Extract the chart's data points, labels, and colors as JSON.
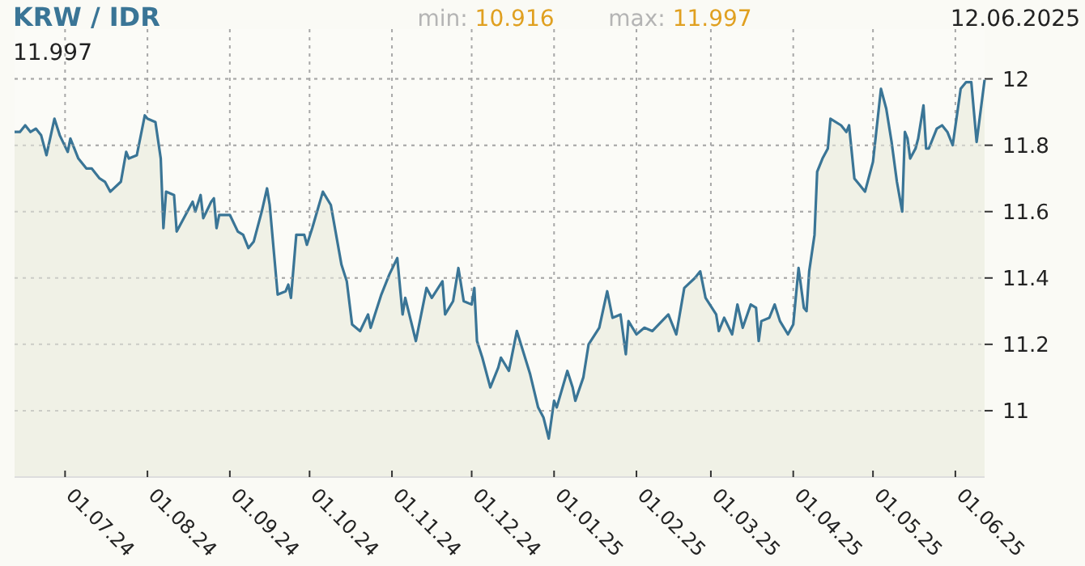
{
  "chart_data": {
    "type": "area",
    "title": "KRW / IDR",
    "annotations": [
      "min: 10.916",
      "max: 11.997",
      "12.06.2025",
      "11.997"
    ],
    "x": [
      "2024-06-12",
      "2024-06-14",
      "2024-06-16",
      "2024-06-18",
      "2024-06-20",
      "2024-06-22",
      "2024-06-24",
      "2024-06-27",
      "2024-06-29",
      "2024-07-02",
      "2024-07-03",
      "2024-07-06",
      "2024-07-09",
      "2024-07-11",
      "2024-07-14",
      "2024-07-16",
      "2024-07-18",
      "2024-07-22",
      "2024-07-24",
      "2024-07-25",
      "2024-07-28",
      "2024-07-31",
      "2024-08-01",
      "2024-08-04",
      "2024-08-06",
      "2024-08-07",
      "2024-08-08",
      "2024-08-11",
      "2024-08-12",
      "2024-08-14",
      "2024-08-18",
      "2024-08-19",
      "2024-08-21",
      "2024-08-22",
      "2024-08-25",
      "2024-08-26",
      "2024-08-27",
      "2024-08-28",
      "2024-09-01",
      "2024-09-04",
      "2024-09-06",
      "2024-09-08",
      "2024-09-10",
      "2024-09-13",
      "2024-09-15",
      "2024-09-16",
      "2024-09-19",
      "2024-09-22",
      "2024-09-23",
      "2024-09-24",
      "2024-09-26",
      "2024-09-29",
      "2024-09-30",
      "2024-10-02",
      "2024-10-06",
      "2024-10-09",
      "2024-10-13",
      "2024-10-15",
      "2024-10-17",
      "2024-10-20",
      "2024-10-23",
      "2024-10-24",
      "2024-10-28",
      "2024-10-31",
      "2024-11-03",
      "2024-11-05",
      "2024-11-06",
      "2024-11-10",
      "2024-11-14",
      "2024-11-16",
      "2024-11-20",
      "2024-11-21",
      "2024-11-24",
      "2024-11-26",
      "2024-11-28",
      "2024-12-01",
      "2024-12-02",
      "2024-12-03",
      "2024-12-05",
      "2024-12-08",
      "2024-12-11",
      "2024-12-12",
      "2024-12-15",
      "2024-12-18",
      "2024-12-23",
      "2024-12-26",
      "2024-12-28",
      "2024-12-30",
      "2025-01-01",
      "2025-01-02",
      "2025-01-06",
      "2025-01-08",
      "2025-01-09",
      "2025-01-12",
      "2025-01-14",
      "2025-01-18",
      "2025-01-21",
      "2025-01-23",
      "2025-01-26",
      "2025-01-28",
      "2025-01-29",
      "2025-02-01",
      "2025-02-04",
      "2025-02-07",
      "2025-02-13",
      "2025-02-16",
      "2025-02-19",
      "2025-02-23",
      "2025-02-25",
      "2025-02-27",
      "2025-03-03",
      "2025-03-04",
      "2025-03-06",
      "2025-03-09",
      "2025-03-11",
      "2025-03-13",
      "2025-03-16",
      "2025-03-18",
      "2025-03-19",
      "2025-03-20",
      "2025-03-23",
      "2025-03-25",
      "2025-03-27",
      "2025-03-30",
      "2025-04-01",
      "2025-04-03",
      "2025-04-05",
      "2025-04-06",
      "2025-04-07",
      "2025-04-09",
      "2025-04-10",
      "2025-04-12",
      "2025-04-14",
      "2025-04-15",
      "2025-04-19",
      "2025-04-21",
      "2025-04-22",
      "2025-04-24",
      "2025-04-26",
      "2025-04-28",
      "2025-05-01",
      "2025-05-04",
      "2025-05-06",
      "2025-05-08",
      "2025-05-10",
      "2025-05-12",
      "2025-05-13",
      "2025-05-14",
      "2025-05-15",
      "2025-05-17",
      "2025-05-18",
      "2025-05-20",
      "2025-05-21",
      "2025-05-22",
      "2025-05-25",
      "2025-05-27",
      "2025-05-29",
      "2025-05-31",
      "2025-06-03",
      "2025-06-05",
      "2025-06-07",
      "2025-06-09",
      "2025-06-12"
    ],
    "series": [
      {
        "color": "#3a7596",
        "values": [
          11.84,
          11.84,
          11.86,
          11.84,
          11.85,
          11.83,
          11.77,
          11.88,
          11.83,
          11.78,
          11.82,
          11.76,
          11.73,
          11.73,
          11.7,
          11.69,
          11.66,
          11.69,
          11.78,
          11.76,
          11.77,
          11.89,
          11.88,
          11.87,
          11.76,
          11.55,
          11.66,
          11.65,
          11.54,
          11.57,
          11.63,
          11.6,
          11.65,
          11.58,
          11.63,
          11.64,
          11.55,
          11.59,
          11.59,
          11.54,
          11.53,
          11.49,
          11.51,
          11.6,
          11.67,
          11.62,
          11.35,
          11.36,
          11.38,
          11.34,
          11.53,
          11.53,
          11.5,
          11.55,
          11.66,
          11.62,
          11.44,
          11.39,
          11.26,
          11.24,
          11.29,
          11.25,
          11.35,
          11.41,
          11.46,
          11.29,
          11.34,
          11.21,
          11.37,
          11.34,
          11.39,
          11.29,
          11.33,
          11.43,
          11.33,
          11.32,
          11.37,
          11.21,
          11.16,
          11.07,
          11.13,
          11.16,
          11.12,
          11.24,
          11.11,
          11.01,
          10.98,
          10.916,
          11.03,
          11.01,
          11.12,
          11.07,
          11.03,
          11.1,
          11.2,
          11.25,
          11.36,
          11.28,
          11.29,
          11.17,
          11.27,
          11.23,
          11.25,
          11.24,
          11.29,
          11.23,
          11.37,
          11.4,
          11.42,
          11.34,
          11.29,
          11.24,
          11.28,
          11.23,
          11.32,
          11.25,
          11.32,
          11.31,
          11.21,
          11.27,
          11.28,
          11.32,
          11.27,
          11.23,
          11.26,
          11.43,
          11.31,
          11.3,
          11.42,
          11.53,
          11.72,
          11.76,
          11.79,
          11.88,
          11.86,
          11.84,
          11.86,
          11.7,
          11.68,
          11.66,
          11.75,
          11.97,
          11.91,
          11.81,
          11.69,
          11.6,
          11.84,
          11.82,
          11.76,
          11.79,
          11.82,
          11.92,
          11.79,
          11.79,
          11.85,
          11.86,
          11.84,
          11.8,
          11.97,
          11.99,
          11.99,
          11.81,
          11.997
        ]
      }
    ],
    "xlim": [
      "2024-06-12",
      "2025-06-12"
    ],
    "xticks": [
      {
        "value": "2024-07-01",
        "label": "01.07.24"
      },
      {
        "value": "2024-08-01",
        "label": "01.08.24"
      },
      {
        "value": "2024-09-01",
        "label": "01.09.24"
      },
      {
        "value": "2024-10-01",
        "label": "01.10.24"
      },
      {
        "value": "2024-11-01",
        "label": "01.11.24"
      },
      {
        "value": "2024-12-01",
        "label": "01.12.24"
      },
      {
        "value": "2025-01-01",
        "label": "01.01.25"
      },
      {
        "value": "2025-02-01",
        "label": "01.02.25"
      },
      {
        "value": "2025-03-01",
        "label": "01.03.25"
      },
      {
        "value": "2025-04-01",
        "label": "01.04.25"
      },
      {
        "value": "2025-05-01",
        "label": "01.05.25"
      },
      {
        "value": "2025-06-01",
        "label": "01.06.25"
      }
    ],
    "ylim": [
      10.8,
      12.15
    ],
    "yticks": [
      11,
      11.2,
      11.4,
      11.6,
      11.8,
      12
    ],
    "grid": true,
    "marker": "none",
    "line_style": "solid"
  }
}
